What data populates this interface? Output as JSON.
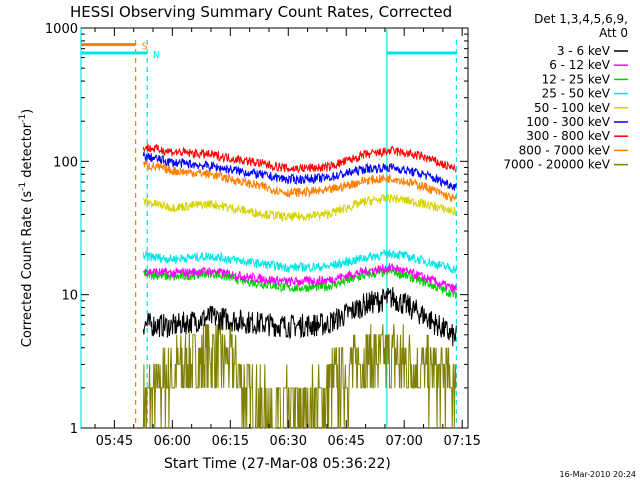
{
  "chart_data": {
    "type": "line",
    "title": "HESSI Observing Summary Count Rates, Corrected",
    "xlabel": "Start Time (27-Mar-08 05:36:22)",
    "ylabel": "Corrected Count Rate (s",
    "ylabel_sup1": "-1",
    "ylabel_mid": " detector",
    "ylabel_sup2": "-1",
    "ylabel_end": ")",
    "y_scale": "log",
    "ylim": [
      1,
      1000
    ],
    "xlim": [
      "05:36:22",
      "07:16:30"
    ],
    "x_ticks": [
      "05:45",
      "06:00",
      "06:15",
      "06:30",
      "06:45",
      "07:00",
      "07:15"
    ],
    "y_ticks": [
      "1",
      "10",
      "100",
      "1000"
    ],
    "legend_header": [
      "Det 1,3,4,5,6,9,",
      "Att 0"
    ],
    "legend_position": "right",
    "footer_timestamp": "16-Mar-2010 20:24",
    "flags": [
      {
        "label": "S",
        "color": "#ff7f00",
        "level": 750,
        "segments": [
          [
            "05:36:22",
            "05:50:30"
          ]
        ],
        "marker_time": "05:50:30"
      },
      {
        "label": "N",
        "color": "#00e5e5",
        "level": 650,
        "segments": [
          [
            "05:36:22",
            "05:53:30"
          ],
          [
            "06:55:30",
            "07:13:30"
          ]
        ],
        "marker_time": "05:53:30"
      }
    ],
    "markers_solid": [
      {
        "time": "05:36:22",
        "color": "#00e5e5"
      },
      {
        "time": "06:55:30",
        "color": "#00e5e5"
      }
    ],
    "markers_dashed": [
      {
        "time": "05:50:30",
        "color": "#ff7f00"
      },
      {
        "time": "05:53:30",
        "color": "#00e5e5"
      },
      {
        "time": "07:13:30",
        "color": "#00e5e5"
      }
    ],
    "data_start": "05:52:30",
    "data_end": "07:13:30",
    "series": [
      {
        "name": "3 - 6 keV",
        "color": "#000000",
        "points": [
          [
            "05:52:30",
            6.0
          ],
          [
            "06:00",
            5.8
          ],
          [
            "06:10",
            6.8
          ],
          [
            "06:20",
            6.2
          ],
          [
            "06:30",
            5.8
          ],
          [
            "06:40",
            6.0
          ],
          [
            "06:50",
            8.5
          ],
          [
            "06:57",
            9.5
          ],
          [
            "07:05",
            7.0
          ],
          [
            "07:13",
            4.8
          ]
        ]
      },
      {
        "name": "6 - 12 keV",
        "color": "#ff00ff",
        "points": [
          [
            "05:52:30",
            15
          ],
          [
            "06:00",
            14.5
          ],
          [
            "06:10",
            15
          ],
          [
            "06:20",
            13.5
          ],
          [
            "06:30",
            12.5
          ],
          [
            "06:40",
            12.8
          ],
          [
            "06:50",
            15
          ],
          [
            "06:57",
            16
          ],
          [
            "07:05",
            13.5
          ],
          [
            "07:13",
            11
          ]
        ]
      },
      {
        "name": "12 - 25 keV",
        "color": "#00d000",
        "points": [
          [
            "05:52:30",
            14.5
          ],
          [
            "06:00",
            13.5
          ],
          [
            "06:10",
            14.5
          ],
          [
            "06:20",
            12.5
          ],
          [
            "06:30",
            11.2
          ],
          [
            "06:40",
            11.5
          ],
          [
            "06:50",
            14
          ],
          [
            "06:57",
            15
          ],
          [
            "07:05",
            12.5
          ],
          [
            "07:13",
            10
          ]
        ]
      },
      {
        "name": "25 - 50 keV",
        "color": "#00e5e5",
        "points": [
          [
            "05:52:30",
            19.5
          ],
          [
            "06:00",
            18.5
          ],
          [
            "06:10",
            19.5
          ],
          [
            "06:20",
            17.5
          ],
          [
            "06:30",
            16
          ],
          [
            "06:40",
            16.2
          ],
          [
            "06:50",
            19
          ],
          [
            "06:57",
            20.5
          ],
          [
            "07:05",
            18
          ],
          [
            "07:13",
            15.5
          ]
        ]
      },
      {
        "name": "50 - 100 keV",
        "color": "#d4d400",
        "points": [
          [
            "05:52:30",
            50
          ],
          [
            "06:00",
            45
          ],
          [
            "06:10",
            48
          ],
          [
            "06:20",
            42
          ],
          [
            "06:30",
            38
          ],
          [
            "06:40",
            40
          ],
          [
            "06:50",
            50
          ],
          [
            "06:57",
            53
          ],
          [
            "07:05",
            48
          ],
          [
            "07:13",
            42
          ]
        ]
      },
      {
        "name": "100 - 300 keV",
        "color": "#0000ff",
        "points": [
          [
            "05:52:30",
            110
          ],
          [
            "06:00",
            98
          ],
          [
            "06:10",
            92
          ],
          [
            "06:20",
            82
          ],
          [
            "06:30",
            73
          ],
          [
            "06:40",
            75
          ],
          [
            "06:50",
            88
          ],
          [
            "06:57",
            90
          ],
          [
            "07:05",
            80
          ],
          [
            "07:13",
            65
          ]
        ]
      },
      {
        "name": "300 - 800 keV",
        "color": "#ff0000",
        "points": [
          [
            "05:52:30",
            128
          ],
          [
            "06:00",
            118
          ],
          [
            "06:10",
            112
          ],
          [
            "06:20",
            100
          ],
          [
            "06:30",
            88
          ],
          [
            "06:40",
            90
          ],
          [
            "06:50",
            112
          ],
          [
            "06:57",
            120
          ],
          [
            "07:05",
            108
          ],
          [
            "07:13",
            88
          ]
        ]
      },
      {
        "name": "800 - 7000 keV",
        "color": "#ff7f00",
        "points": [
          [
            "05:52:30",
            95
          ],
          [
            "06:00",
            85
          ],
          [
            "06:10",
            80
          ],
          [
            "06:20",
            68
          ],
          [
            "06:30",
            58
          ],
          [
            "06:40",
            60
          ],
          [
            "06:50",
            72
          ],
          [
            "06:57",
            75
          ],
          [
            "07:05",
            65
          ],
          [
            "07:13",
            52
          ]
        ]
      },
      {
        "name": "7000 - 20000 keV",
        "color": "#808000",
        "points": [
          [
            "05:52:30",
            1.6
          ],
          [
            "06:00",
            2.6
          ],
          [
            "06:10",
            3.6
          ],
          [
            "06:15",
            3.2
          ],
          [
            "06:20",
            1.8
          ],
          [
            "06:25",
            1.3
          ],
          [
            "06:35",
            1.4
          ],
          [
            "06:42",
            2.2
          ],
          [
            "06:50",
            3.2
          ],
          [
            "06:57",
            3.5
          ],
          [
            "07:05",
            2.6
          ],
          [
            "07:13",
            2.2
          ]
        ]
      }
    ]
  }
}
